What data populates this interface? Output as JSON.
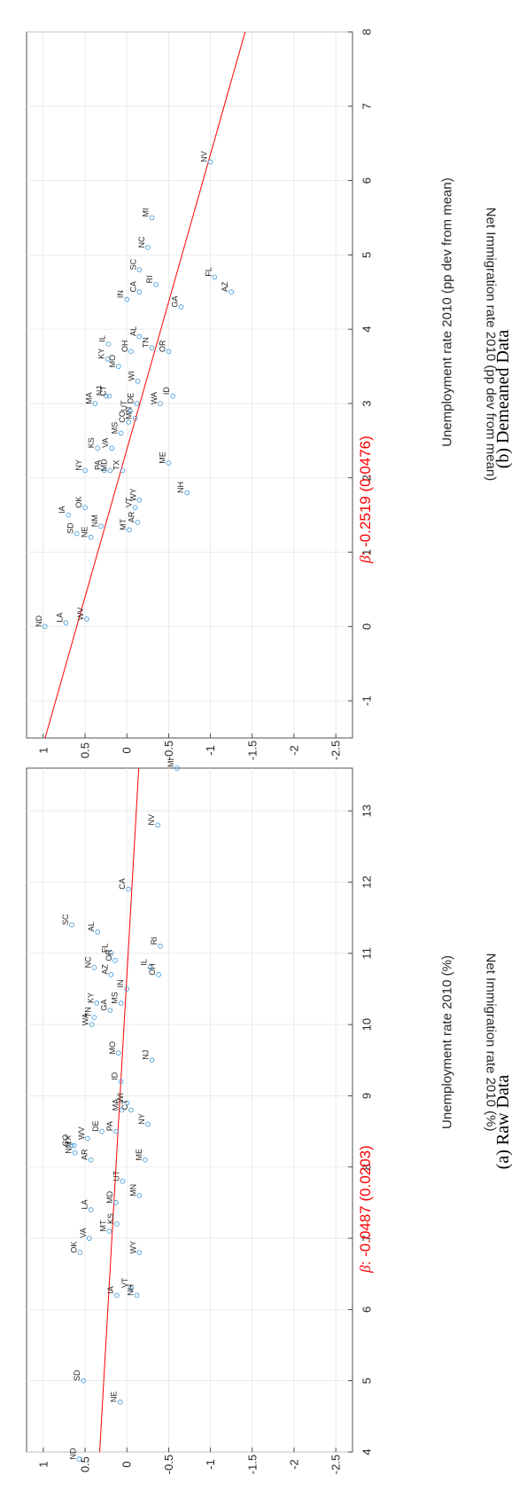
{
  "colors": {
    "fit_line": "#ff0000",
    "marker": "#4f9fd9",
    "grid": "#e6e6e6",
    "axis": "#262626"
  },
  "chart_data": [
    {
      "type": "scatter",
      "caption": "(a) Raw Data",
      "xlabel": "Unemployment rate 2010 (%)",
      "ylabel": "Net Immigration rate 2010 (%)",
      "xlim": [
        4,
        13.6
      ],
      "ylim": [
        -2.7,
        1.2
      ],
      "xticks": [
        4,
        5,
        6,
        7,
        8,
        9,
        10,
        11,
        12,
        13
      ],
      "yticks": [
        1,
        0.5,
        0,
        -0.5,
        -1,
        -1.5,
        -2,
        -2.5
      ],
      "ytick_labels": [
        "1",
        "0.5",
        "0",
        "-0.5",
        "-1",
        "-1.5",
        "-2",
        "-2.5"
      ],
      "grid": true,
      "fit_line": {
        "slope": -0.0487,
        "intercept": 0.52
      },
      "annotation": {
        "beta_symbol": "β",
        "text": ": -0.0487 (0.0203)"
      },
      "points": [
        {
          "label": "ND",
          "x": 3.9,
          "y": 0.57
        },
        {
          "label": "SD",
          "x": 5.0,
          "y": 0.52
        },
        {
          "label": "NE",
          "x": 4.7,
          "y": 0.08
        },
        {
          "label": "IA",
          "x": 6.2,
          "y": 0.12
        },
        {
          "label": "VT",
          "x": 6.3,
          "y": -0.05
        },
        {
          "label": "NH",
          "x": 6.2,
          "y": -0.12
        },
        {
          "label": "WY",
          "x": 6.8,
          "y": -0.15
        },
        {
          "label": "OK",
          "x": 6.8,
          "y": 0.56
        },
        {
          "label": "VA",
          "x": 7.0,
          "y": 0.45
        },
        {
          "label": "MT",
          "x": 7.1,
          "y": 0.21
        },
        {
          "label": "KS",
          "x": 7.2,
          "y": 0.12
        },
        {
          "label": "LA",
          "x": 7.4,
          "y": 0.43
        },
        {
          "label": "MD",
          "x": 7.5,
          "y": 0.13
        },
        {
          "label": "UT",
          "x": 7.8,
          "y": 0.05
        },
        {
          "label": "MN",
          "x": 7.6,
          "y": -0.15
        },
        {
          "label": "ME",
          "x": 8.1,
          "y": -0.22
        },
        {
          "label": "AR",
          "x": 8.1,
          "y": 0.43
        },
        {
          "label": "NM",
          "x": 8.2,
          "y": 0.62
        },
        {
          "label": "TX",
          "x": 8.3,
          "y": 0.63
        },
        {
          "label": "CO",
          "x": 8.3,
          "y": 0.66
        },
        {
          "label": "WV",
          "x": 8.4,
          "y": 0.47
        },
        {
          "label": "DE",
          "x": 8.5,
          "y": 0.3
        },
        {
          "label": "PA",
          "x": 8.5,
          "y": 0.13
        },
        {
          "label": "MA",
          "x": 8.8,
          "y": 0.06
        },
        {
          "label": "WI",
          "x": 8.9,
          "y": 0.0
        },
        {
          "label": "CT",
          "x": 8.8,
          "y": -0.05
        },
        {
          "label": "NY",
          "x": 8.6,
          "y": -0.25
        },
        {
          "label": "ID",
          "x": 9.2,
          "y": 0.07
        },
        {
          "label": "MO",
          "x": 9.6,
          "y": 0.1
        },
        {
          "label": "NJ",
          "x": 9.5,
          "y": -0.3
        },
        {
          "label": "WA",
          "x": 10.0,
          "y": 0.42
        },
        {
          "label": "TN",
          "x": 10.1,
          "y": 0.39
        },
        {
          "label": "KY",
          "x": 10.3,
          "y": 0.36
        },
        {
          "label": "GA",
          "x": 10.2,
          "y": 0.2
        },
        {
          "label": "MS",
          "x": 10.3,
          "y": 0.07
        },
        {
          "label": "IN",
          "x": 10.5,
          "y": 0.0
        },
        {
          "label": "OH",
          "x": 10.7,
          "y": -0.38
        },
        {
          "label": "IL",
          "x": 10.8,
          "y": -0.28
        },
        {
          "label": "NC",
          "x": 10.8,
          "y": 0.39
        },
        {
          "label": "AZ",
          "x": 10.7,
          "y": 0.19
        },
        {
          "label": "FL",
          "x": 11.0,
          "y": 0.19
        },
        {
          "label": "OR",
          "x": 10.9,
          "y": 0.14
        },
        {
          "label": "AL",
          "x": 11.3,
          "y": 0.35
        },
        {
          "label": "SC",
          "x": 11.4,
          "y": 0.66
        },
        {
          "label": "RI",
          "x": 11.1,
          "y": -0.4
        },
        {
          "label": "CA",
          "x": 11.9,
          "y": -0.02
        },
        {
          "label": "NV",
          "x": 12.8,
          "y": -0.37
        },
        {
          "label": "MI",
          "x": 13.6,
          "y": -0.6
        }
      ]
    },
    {
      "type": "scatter",
      "caption": "(b) Demeaned Data",
      "xlabel": "Unemployment rate 2010 (pp dev from mean)",
      "ylabel": "Net Immigration rate 2010 (pp dev from mean)",
      "xlim": [
        -1.5,
        8
      ],
      "ylim": [
        -2.7,
        1.2
      ],
      "xticks": [
        -1,
        0,
        1,
        2,
        3,
        4,
        5,
        6,
        7,
        8
      ],
      "yticks": [
        1,
        0.5,
        0,
        -0.5,
        -1,
        -1.5,
        -2,
        -2.5
      ],
      "ytick_labels": [
        "1",
        "0.5",
        "0",
        "-0.5",
        "-1",
        "-1.5",
        "-2",
        "-2.5"
      ],
      "grid": true,
      "fit_line": {
        "slope": -0.2519,
        "intercept": 0.6
      },
      "annotation": {
        "beta_symbol": "β",
        "text": ": -0.2519 (0.0476)"
      },
      "points": [
        {
          "label": "ND",
          "x": 0.0,
          "y": 0.98
        },
        {
          "label": "LA",
          "x": 0.05,
          "y": 0.73
        },
        {
          "label": "WV",
          "x": 0.1,
          "y": 0.48
        },
        {
          "label": "SD",
          "x": 1.25,
          "y": 0.6
        },
        {
          "label": "NE",
          "x": 1.2,
          "y": 0.43
        },
        {
          "label": "NM",
          "x": 1.35,
          "y": 0.31
        },
        {
          "label": "MT",
          "x": 1.3,
          "y": -0.03
        },
        {
          "label": "AR",
          "x": 1.4,
          "y": -0.13
        },
        {
          "label": "IA",
          "x": 1.5,
          "y": 0.7
        },
        {
          "label": "OK",
          "x": 1.6,
          "y": 0.5
        },
        {
          "label": "VT",
          "x": 1.6,
          "y": -0.1
        },
        {
          "label": "WY",
          "x": 1.7,
          "y": -0.15
        },
        {
          "label": "NH",
          "x": 1.8,
          "y": -0.72
        },
        {
          "label": "NY",
          "x": 2.1,
          "y": 0.5
        },
        {
          "label": "PA",
          "x": 2.1,
          "y": 0.27
        },
        {
          "label": "MD",
          "x": 2.1,
          "y": 0.2
        },
        {
          "label": "TX",
          "x": 2.1,
          "y": 0.05
        },
        {
          "label": "ME",
          "x": 2.2,
          "y": -0.5
        },
        {
          "label": "KS",
          "x": 2.4,
          "y": 0.35
        },
        {
          "label": "VA",
          "x": 2.4,
          "y": 0.18
        },
        {
          "label": "MS",
          "x": 2.6,
          "y": 0.07
        },
        {
          "label": "CO",
          "x": 2.75,
          "y": -0.02
        },
        {
          "label": "MN",
          "x": 2.8,
          "y": -0.1
        },
        {
          "label": "MA",
          "x": 3.0,
          "y": 0.38
        },
        {
          "label": "NJ",
          "x": 3.1,
          "y": 0.25
        },
        {
          "label": "CT",
          "x": 3.1,
          "y": 0.21
        },
        {
          "label": "UT",
          "x": 2.9,
          "y": -0.04
        },
        {
          "label": "DE",
          "x": 3.0,
          "y": -0.12
        },
        {
          "label": "WI",
          "x": 3.3,
          "y": -0.13
        },
        {
          "label": "ID",
          "x": 3.1,
          "y": -0.55
        },
        {
          "label": "KY",
          "x": 3.6,
          "y": 0.23
        },
        {
          "label": "IL",
          "x": 3.8,
          "y": 0.22
        },
        {
          "label": "OH",
          "x": 3.7,
          "y": -0.05
        },
        {
          "label": "AL",
          "x": 3.9,
          "y": -0.15
        },
        {
          "label": "MO",
          "x": 3.5,
          "y": 0.1
        },
        {
          "label": "TN",
          "x": 3.75,
          "y": -0.3
        },
        {
          "label": "OR",
          "x": 3.7,
          "y": -0.5
        },
        {
          "label": "WA",
          "x": 3.0,
          "y": -0.4
        },
        {
          "label": "GA",
          "x": 4.3,
          "y": -0.65
        },
        {
          "label": "IN",
          "x": 4.4,
          "y": 0.0
        },
        {
          "label": "CA",
          "x": 4.5,
          "y": -0.15
        },
        {
          "label": "RI",
          "x": 4.6,
          "y": -0.35
        },
        {
          "label": "SC",
          "x": 4.8,
          "y": -0.15
        },
        {
          "label": "NC",
          "x": 5.1,
          "y": -0.25
        },
        {
          "label": "MI",
          "x": 5.5,
          "y": -0.3
        },
        {
          "label": "FL",
          "x": 4.7,
          "y": -1.05
        },
        {
          "label": "AZ",
          "x": 4.5,
          "y": -1.25
        },
        {
          "label": "NV",
          "x": 6.25,
          "y": -1.0
        }
      ]
    }
  ]
}
